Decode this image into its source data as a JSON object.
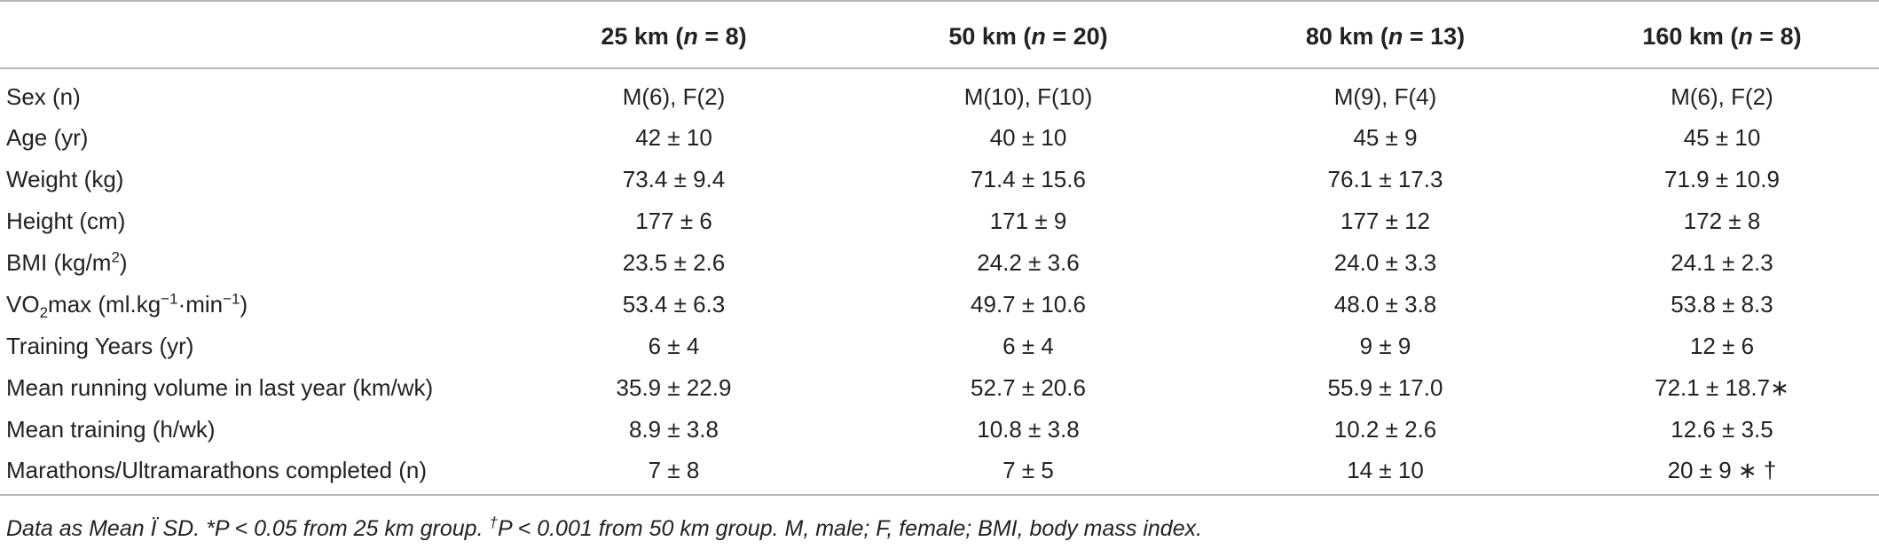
{
  "table": {
    "header": {
      "col0": "",
      "cols": [
        {
          "prefix": "25 km (",
          "n": "n",
          "suffix": " = 8)"
        },
        {
          "prefix": "50 km (",
          "n": "n",
          "suffix": " = 20)"
        },
        {
          "prefix": "80 km (",
          "n": "n",
          "suffix": " = 13)"
        },
        {
          "prefix": "160 km (",
          "n": "n",
          "suffix": " = 8)"
        }
      ]
    },
    "rows": [
      {
        "label": "Sex (n)",
        "values": [
          "M(6), F(2)",
          "M(10), F(10)",
          "M(9), F(4)",
          "M(6), F(2)"
        ]
      },
      {
        "label": "Age (yr)",
        "values": [
          "42 ± 10",
          "40 ± 10",
          "45 ± 9",
          "45 ± 10"
        ]
      },
      {
        "label": "Weight (kg)",
        "values": [
          "73.4 ± 9.4",
          "71.4 ± 15.6",
          "76.1 ± 17.3",
          "71.9 ± 10.9"
        ]
      },
      {
        "label": "Height (cm)",
        "values": [
          "177 ± 6",
          "171 ± 9",
          "177 ± 12",
          "172 ± 8"
        ]
      },
      {
        "label": "BMI (kg/m",
        "label_sup": "2",
        "label_after": ")",
        "values": [
          "23.5 ± 2.6",
          "24.2 ± 3.6",
          "24.0 ± 3.3",
          "24.1 ± 2.3"
        ]
      },
      {
        "label": "VO",
        "label_sub": "2",
        "label_after": "max (ml.kg",
        "label_sup1": "−1",
        "label_mid": "·min",
        "label_sup2": "−1",
        "label_end": ")",
        "values": [
          "53.4 ± 6.3",
          "49.7 ± 10.6",
          "48.0 ± 3.8",
          "53.8 ± 8.3"
        ]
      },
      {
        "label": "Training Years (yr)",
        "values": [
          "6 ± 4",
          "6 ± 4",
          "9 ± 9",
          "12 ± 6"
        ]
      },
      {
        "label": "Mean running volume in last year (km/wk)",
        "values": [
          "35.9 ± 22.9",
          "52.7 ± 20.6",
          "55.9 ± 17.0",
          "72.1 ± 18.7∗"
        ]
      },
      {
        "label": "Mean training (h/wk)",
        "values": [
          "8.9 ± 3.8",
          "10.8 ± 3.8",
          "10.2 ± 2.6",
          "12.6 ± 3.5"
        ]
      },
      {
        "label": "Marathons/Ultramarathons completed (n)",
        "values": [
          "7 ± 8",
          "7 ± 5",
          "14 ± 10",
          "20 ± 9 ∗ †"
        ]
      }
    ]
  },
  "footnote": {
    "part1": "Data as Mean Ï SD. *P < 0.05 from 25 km group. ",
    "dagger": "†",
    "part2": "P < 0.001 from 50 km group. M, male; F, female; BMI, body mass index."
  }
}
